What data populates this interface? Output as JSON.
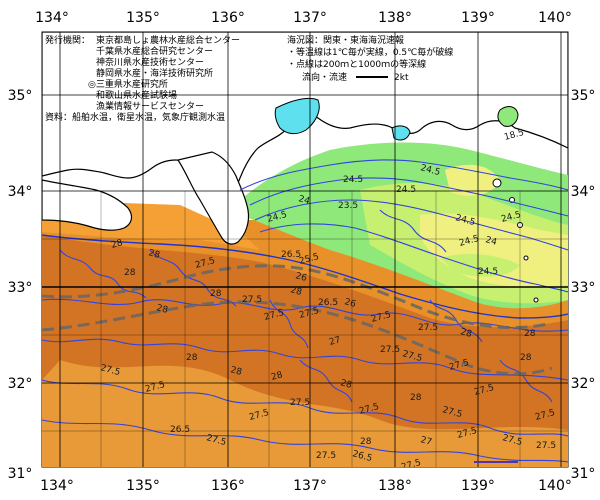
{
  "map": {
    "lon_ticks": [
      "134°",
      "135°",
      "136°",
      "137°",
      "138°",
      "139°",
      "140°"
    ],
    "lat_ticks": [
      "35°",
      "34°",
      "33°",
      "32°",
      "31°"
    ],
    "lat_ticks_right": [
      "35°",
      "34°",
      "33°",
      "32°",
      "31°"
    ]
  },
  "issuer": {
    "heading": "発行機関：",
    "orgs": [
      "東京都島しょ農林水産総合センター",
      "千葉県水産総合研究センター",
      "神奈川県水産技術センター",
      "静岡県水産・海洋技術研究所",
      "◎三重県水産研究所",
      "和歌山県水産試験場",
      "漁業情報サービスセンター"
    ],
    "source": "資料：船舶水温，衛星水温，気象庁観測水温"
  },
  "legend": {
    "title": "海況図：関東・東海海況速報",
    "note1": "・等温線は1℃毎が実線，0.5℃毎が破線",
    "note2": "・点線は200ｍと1000ｍの等深線",
    "current_label": "流向・流速",
    "current_unit": "2kt"
  },
  "isotherm_labels": [
    "18.5",
    "24.5",
    "24",
    "24.5",
    "23.5",
    "24.5",
    "24.5",
    "24.5",
    "24",
    "24.5",
    "24.5",
    "24.5",
    "25.5",
    "26.5",
    "26",
    "28",
    "28",
    "28",
    "27.5",
    "28",
    "28",
    "27.5",
    "27.5",
    "28",
    "27.5",
    "26.5",
    "26",
    "27.5",
    "27.5",
    "28",
    "27",
    "27.5",
    "27.5",
    "27.5",
    "28",
    "27.5",
    "27.5",
    "28",
    "28",
    "28",
    "27.5",
    "28",
    "27.5",
    "28",
    "27.5",
    "27.5",
    "28",
    "27.5",
    "27.5",
    "26.5",
    "27.5",
    "27.5",
    "28",
    "27",
    "27.5",
    "27.5",
    "26.5",
    "27.5",
    "27.5"
  ],
  "colors": {
    "land": "#ffffff",
    "bay_cold": "#5ee0ee",
    "sea_green": "#8ee87a",
    "sea_yellowgreen": "#c8f070",
    "sea_yellow": "#f0f080",
    "sea_light_orange": "#f5b040",
    "sea_orange": "#e8902a",
    "sea_dark_orange": "#c86820",
    "isotherm": "#3344dd",
    "coast": "#000000",
    "kuroshio_axis": "#666666"
  }
}
